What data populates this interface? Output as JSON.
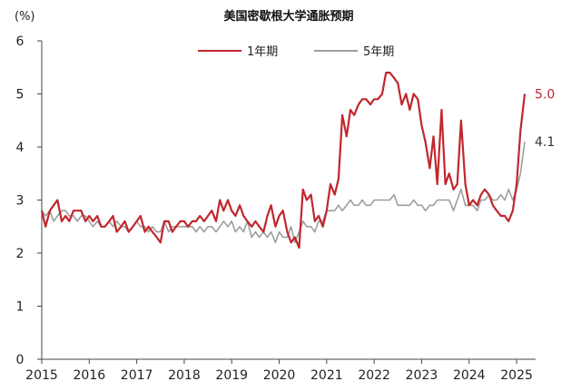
{
  "chart_data": {
    "type": "line",
    "title": "美国密歇根大学通胀预期",
    "unit_label": "(%)",
    "ylim": [
      0,
      6
    ],
    "yticks": [
      "0",
      "1",
      "2",
      "3",
      "4",
      "5",
      "6"
    ],
    "xlim": [
      2015,
      2025.4
    ],
    "xticks": [
      "2015",
      "2016",
      "2017",
      "2018",
      "2019",
      "2020",
      "2021",
      "2022",
      "2023",
      "2024",
      "2025"
    ],
    "grid": false,
    "legend_position": "top-center",
    "series": [
      {
        "name": "1年期",
        "color": "#c0272d",
        "end_label": "5.0",
        "points": [
          [
            2015.0,
            2.8
          ],
          [
            2015.08,
            2.5
          ],
          [
            2015.17,
            2.8
          ],
          [
            2015.25,
            2.9
          ],
          [
            2015.33,
            3.0
          ],
          [
            2015.42,
            2.6
          ],
          [
            2015.5,
            2.7
          ],
          [
            2015.58,
            2.6
          ],
          [
            2015.67,
            2.8
          ],
          [
            2015.75,
            2.8
          ],
          [
            2015.83,
            2.8
          ],
          [
            2015.92,
            2.6
          ],
          [
            2016.0,
            2.7
          ],
          [
            2016.08,
            2.6
          ],
          [
            2016.17,
            2.7
          ],
          [
            2016.25,
            2.5
          ],
          [
            2016.33,
            2.5
          ],
          [
            2016.42,
            2.6
          ],
          [
            2016.5,
            2.7
          ],
          [
            2016.58,
            2.4
          ],
          [
            2016.67,
            2.5
          ],
          [
            2016.75,
            2.6
          ],
          [
            2016.83,
            2.4
          ],
          [
            2016.92,
            2.5
          ],
          [
            2017.0,
            2.6
          ],
          [
            2017.08,
            2.7
          ],
          [
            2017.17,
            2.4
          ],
          [
            2017.25,
            2.5
          ],
          [
            2017.33,
            2.4
          ],
          [
            2017.42,
            2.3
          ],
          [
            2017.5,
            2.2
          ],
          [
            2017.58,
            2.6
          ],
          [
            2017.67,
            2.6
          ],
          [
            2017.75,
            2.4
          ],
          [
            2017.83,
            2.5
          ],
          [
            2017.92,
            2.6
          ],
          [
            2018.0,
            2.6
          ],
          [
            2018.08,
            2.5
          ],
          [
            2018.17,
            2.6
          ],
          [
            2018.25,
            2.6
          ],
          [
            2018.33,
            2.7
          ],
          [
            2018.42,
            2.6
          ],
          [
            2018.5,
            2.7
          ],
          [
            2018.58,
            2.8
          ],
          [
            2018.67,
            2.6
          ],
          [
            2018.75,
            3.0
          ],
          [
            2018.83,
            2.8
          ],
          [
            2018.92,
            3.0
          ],
          [
            2019.0,
            2.8
          ],
          [
            2019.08,
            2.7
          ],
          [
            2019.17,
            2.9
          ],
          [
            2019.25,
            2.7
          ],
          [
            2019.33,
            2.6
          ],
          [
            2019.42,
            2.5
          ],
          [
            2019.5,
            2.6
          ],
          [
            2019.58,
            2.5
          ],
          [
            2019.67,
            2.4
          ],
          [
            2019.75,
            2.7
          ],
          [
            2019.83,
            2.9
          ],
          [
            2019.92,
            2.5
          ],
          [
            2020.0,
            2.7
          ],
          [
            2020.08,
            2.8
          ],
          [
            2020.17,
            2.4
          ],
          [
            2020.25,
            2.2
          ],
          [
            2020.33,
            2.3
          ],
          [
            2020.42,
            2.1
          ],
          [
            2020.5,
            3.2
          ],
          [
            2020.58,
            3.0
          ],
          [
            2020.67,
            3.1
          ],
          [
            2020.75,
            2.6
          ],
          [
            2020.83,
            2.7
          ],
          [
            2020.92,
            2.5
          ],
          [
            2021.0,
            2.8
          ],
          [
            2021.08,
            3.3
          ],
          [
            2021.17,
            3.1
          ],
          [
            2021.25,
            3.4
          ],
          [
            2021.33,
            4.6
          ],
          [
            2021.42,
            4.2
          ],
          [
            2021.5,
            4.7
          ],
          [
            2021.58,
            4.6
          ],
          [
            2021.67,
            4.8
          ],
          [
            2021.75,
            4.9
          ],
          [
            2021.83,
            4.9
          ],
          [
            2021.92,
            4.8
          ],
          [
            2022.0,
            4.9
          ],
          [
            2022.08,
            4.9
          ],
          [
            2022.17,
            5.0
          ],
          [
            2022.25,
            5.4
          ],
          [
            2022.33,
            5.4
          ],
          [
            2022.42,
            5.3
          ],
          [
            2022.5,
            5.2
          ],
          [
            2022.58,
            4.8
          ],
          [
            2022.67,
            5.0
          ],
          [
            2022.75,
            4.7
          ],
          [
            2022.83,
            5.0
          ],
          [
            2022.92,
            4.9
          ],
          [
            2023.0,
            4.4
          ],
          [
            2023.08,
            4.1
          ],
          [
            2023.17,
            3.6
          ],
          [
            2023.25,
            4.2
          ],
          [
            2023.33,
            3.3
          ],
          [
            2023.42,
            4.7
          ],
          [
            2023.5,
            3.3
          ],
          [
            2023.58,
            3.5
          ],
          [
            2023.67,
            3.2
          ],
          [
            2023.75,
            3.3
          ],
          [
            2023.83,
            4.5
          ],
          [
            2023.92,
            3.3
          ],
          [
            2024.0,
            2.9
          ],
          [
            2024.08,
            3.0
          ],
          [
            2024.17,
            2.9
          ],
          [
            2024.25,
            3.1
          ],
          [
            2024.33,
            3.2
          ],
          [
            2024.42,
            3.1
          ],
          [
            2024.5,
            2.9
          ],
          [
            2024.58,
            2.8
          ],
          [
            2024.67,
            2.7
          ],
          [
            2024.75,
            2.7
          ],
          [
            2024.83,
            2.6
          ],
          [
            2024.92,
            2.8
          ],
          [
            2025.0,
            3.3
          ],
          [
            2025.08,
            4.3
          ],
          [
            2025.17,
            5.0
          ]
        ]
      },
      {
        "name": "5年期",
        "color": "#9e9e9e",
        "end_label": "4.1",
        "points": [
          [
            2015.0,
            2.8
          ],
          [
            2015.08,
            2.7
          ],
          [
            2015.17,
            2.8
          ],
          [
            2015.25,
            2.6
          ],
          [
            2015.33,
            2.7
          ],
          [
            2015.42,
            2.8
          ],
          [
            2015.5,
            2.8
          ],
          [
            2015.58,
            2.7
          ],
          [
            2015.67,
            2.7
          ],
          [
            2015.75,
            2.6
          ],
          [
            2015.83,
            2.7
          ],
          [
            2015.92,
            2.7
          ],
          [
            2016.0,
            2.6
          ],
          [
            2016.08,
            2.5
          ],
          [
            2016.17,
            2.6
          ],
          [
            2016.25,
            2.5
          ],
          [
            2016.33,
            2.5
          ],
          [
            2016.42,
            2.6
          ],
          [
            2016.5,
            2.5
          ],
          [
            2016.58,
            2.6
          ],
          [
            2016.67,
            2.5
          ],
          [
            2016.75,
            2.5
          ],
          [
            2016.83,
            2.4
          ],
          [
            2016.92,
            2.5
          ],
          [
            2017.0,
            2.6
          ],
          [
            2017.08,
            2.5
          ],
          [
            2017.17,
            2.5
          ],
          [
            2017.25,
            2.4
          ],
          [
            2017.33,
            2.5
          ],
          [
            2017.42,
            2.4
          ],
          [
            2017.5,
            2.4
          ],
          [
            2017.58,
            2.6
          ],
          [
            2017.67,
            2.4
          ],
          [
            2017.75,
            2.5
          ],
          [
            2017.83,
            2.5
          ],
          [
            2017.92,
            2.5
          ],
          [
            2018.0,
            2.5
          ],
          [
            2018.08,
            2.5
          ],
          [
            2018.17,
            2.5
          ],
          [
            2018.25,
            2.4
          ],
          [
            2018.33,
            2.5
          ],
          [
            2018.42,
            2.4
          ],
          [
            2018.5,
            2.5
          ],
          [
            2018.58,
            2.5
          ],
          [
            2018.67,
            2.4
          ],
          [
            2018.75,
            2.5
          ],
          [
            2018.83,
            2.6
          ],
          [
            2018.92,
            2.5
          ],
          [
            2019.0,
            2.6
          ],
          [
            2019.08,
            2.4
          ],
          [
            2019.17,
            2.5
          ],
          [
            2019.25,
            2.4
          ],
          [
            2019.33,
            2.6
          ],
          [
            2019.42,
            2.3
          ],
          [
            2019.5,
            2.4
          ],
          [
            2019.58,
            2.3
          ],
          [
            2019.67,
            2.4
          ],
          [
            2019.75,
            2.3
          ],
          [
            2019.83,
            2.4
          ],
          [
            2019.92,
            2.2
          ],
          [
            2020.0,
            2.4
          ],
          [
            2020.08,
            2.3
          ],
          [
            2020.17,
            2.3
          ],
          [
            2020.25,
            2.5
          ],
          [
            2020.33,
            2.2
          ],
          [
            2020.42,
            2.4
          ],
          [
            2020.5,
            2.6
          ],
          [
            2020.58,
            2.5
          ],
          [
            2020.67,
            2.5
          ],
          [
            2020.75,
            2.4
          ],
          [
            2020.83,
            2.6
          ],
          [
            2020.92,
            2.6
          ],
          [
            2021.0,
            2.8
          ],
          [
            2021.08,
            2.8
          ],
          [
            2021.17,
            2.8
          ],
          [
            2021.25,
            2.9
          ],
          [
            2021.33,
            2.8
          ],
          [
            2021.42,
            2.9
          ],
          [
            2021.5,
            3.0
          ],
          [
            2021.58,
            2.9
          ],
          [
            2021.67,
            2.9
          ],
          [
            2021.75,
            3.0
          ],
          [
            2021.83,
            2.9
          ],
          [
            2021.92,
            2.9
          ],
          [
            2022.0,
            3.0
          ],
          [
            2022.08,
            3.0
          ],
          [
            2022.17,
            3.0
          ],
          [
            2022.25,
            3.0
          ],
          [
            2022.33,
            3.0
          ],
          [
            2022.42,
            3.1
          ],
          [
            2022.5,
            2.9
          ],
          [
            2022.58,
            2.9
          ],
          [
            2022.67,
            2.9
          ],
          [
            2022.75,
            2.9
          ],
          [
            2022.83,
            3.0
          ],
          [
            2022.92,
            2.9
          ],
          [
            2023.0,
            2.9
          ],
          [
            2023.08,
            2.8
          ],
          [
            2023.17,
            2.9
          ],
          [
            2023.25,
            2.9
          ],
          [
            2023.33,
            3.0
          ],
          [
            2023.42,
            3.0
          ],
          [
            2023.5,
            3.0
          ],
          [
            2023.58,
            3.0
          ],
          [
            2023.67,
            2.8
          ],
          [
            2023.75,
            3.0
          ],
          [
            2023.83,
            3.2
          ],
          [
            2023.92,
            2.9
          ],
          [
            2024.0,
            2.9
          ],
          [
            2024.08,
            2.9
          ],
          [
            2024.17,
            2.8
          ],
          [
            2024.25,
            3.0
          ],
          [
            2024.33,
            3.0
          ],
          [
            2024.42,
            3.1
          ],
          [
            2024.5,
            3.0
          ],
          [
            2024.58,
            3.0
          ],
          [
            2024.67,
            3.1
          ],
          [
            2024.75,
            3.0
          ],
          [
            2024.83,
            3.2
          ],
          [
            2024.92,
            3.0
          ],
          [
            2025.0,
            3.2
          ],
          [
            2025.08,
            3.5
          ],
          [
            2025.17,
            4.1
          ]
        ]
      }
    ]
  }
}
